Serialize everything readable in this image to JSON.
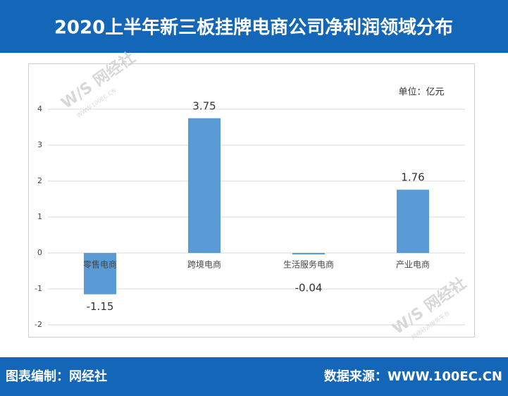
{
  "chart_data": {
    "type": "bar",
    "title": "2020上半年新三板挂牌电商公司净利润领域分布",
    "unit": "单位：亿元",
    "categories": [
      "零售电商",
      "跨境电商",
      "生活服务电商",
      "产业电商"
    ],
    "values": [
      -1.15,
      3.75,
      -0.04,
      1.76
    ],
    "color": "#5b9bd5",
    "ylim": [
      -2,
      4
    ],
    "yticks": [
      -2,
      -1,
      0,
      1,
      2,
      3,
      4
    ],
    "grid": true,
    "footer_left": "图表编制：网经社",
    "footer_right": "数据来源：WWW.100EC.CN",
    "watermark": {
      "brand": "W/S 网经社",
      "site": "WWW.100EC.CN",
      "slogan": "网络经济服务平台"
    }
  }
}
